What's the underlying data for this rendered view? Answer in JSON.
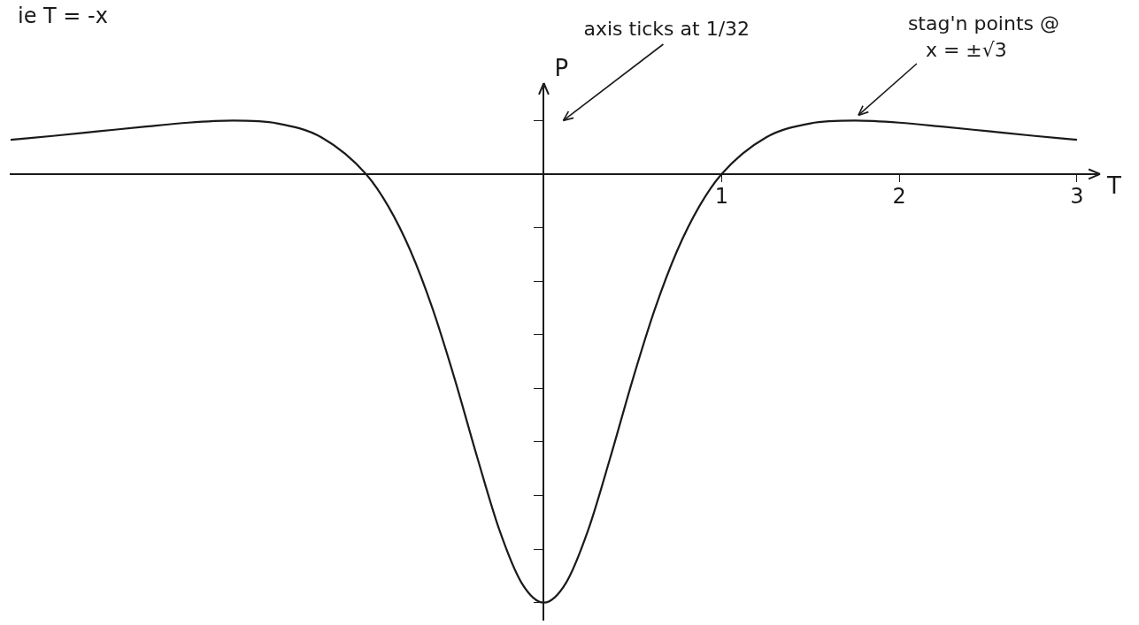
{
  "chart_data": {
    "type": "line",
    "title": "ie T = -x",
    "x_label": "T",
    "y_label": "P",
    "annotations": [
      [
        "axis ticks at 1/32"
      ],
      [
        "stag'n points @",
        "x = ±√3"
      ]
    ],
    "x": [
      -3,
      -2.75,
      -2.5,
      -2.25,
      -2,
      -1.75,
      -1.5,
      -1.25,
      -1,
      -0.875,
      -0.75,
      -0.625,
      -0.5,
      -0.375,
      -0.25,
      -0.125,
      0,
      0.125,
      0.25,
      0.375,
      0.5,
      0.625,
      0.75,
      0.875,
      1,
      1.25,
      1.5,
      1.75,
      2,
      2.25,
      2.5,
      2.75,
      3
    ],
    "values": [
      0.02,
      0.0224,
      0.025,
      0.0276,
      0.03,
      0.0312,
      0.0296,
      0.0214,
      0,
      -0.0188,
      -0.0448,
      -0.0788,
      -0.12,
      -0.1651,
      -0.2076,
      -0.2385,
      -0.25,
      -0.2385,
      -0.2076,
      -0.1651,
      -0.12,
      -0.0788,
      -0.0448,
      -0.0188,
      0,
      0.0214,
      0.0296,
      0.0312,
      0.03,
      0.0276,
      0.025,
      0.0224,
      0.02
    ],
    "color": "#1a1a1a",
    "marker": "none",
    "line_style": "solid",
    "xlim": [
      -3,
      3.1
    ],
    "xticks": [
      1,
      2,
      3
    ],
    "ylim": [
      -0.26,
      0.05
    ],
    "yticks": [
      -0.25,
      -0.21875,
      -0.1875,
      -0.15625,
      -0.125,
      -0.09375,
      -0.0625,
      -0.03125,
      0,
      0.03125
    ],
    "tick_labels": "x",
    "grid": false
  }
}
